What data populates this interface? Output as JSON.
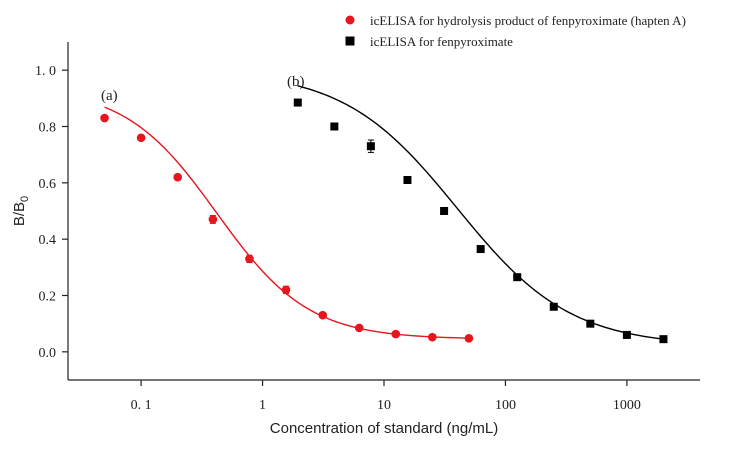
{
  "chart_data": {
    "type": "scatter",
    "title": "",
    "xlabel": "Concentration of standard (ng/mL)",
    "ylabel_main": "B/B",
    "ylabel_sub": "0",
    "xscale": "log",
    "xlim": [
      0.025,
      4000
    ],
    "ylim": [
      -0.1,
      1.1
    ],
    "xticks": [
      0.1,
      1,
      10,
      100,
      1000
    ],
    "xtick_labels": [
      "0. 1",
      "1",
      "10",
      "100",
      "1000"
    ],
    "yticks": [
      0.0,
      0.2,
      0.4,
      0.6,
      0.8,
      1.0
    ],
    "ytick_labels": [
      "0.0",
      "0.2",
      "0.4",
      "0.6",
      "0.8",
      "1. 0"
    ],
    "grid": false,
    "legend_position": "top-right",
    "series": [
      {
        "name": "icELISA for hydrolysis product of  fenpyroximate (hapten A)",
        "label": "(a)",
        "color": "#e8141e",
        "marker": "circle",
        "x": [
          0.05,
          0.1,
          0.2,
          0.39,
          0.78,
          1.56,
          3.13,
          6.25,
          12.5,
          25,
          50
        ],
        "y": [
          0.83,
          0.76,
          0.62,
          0.47,
          0.33,
          0.22,
          0.13,
          0.085,
          0.063,
          0.052,
          0.048
        ],
        "err": [
          0.006,
          0.006,
          0.008,
          0.014,
          0.013,
          0.013,
          0.006,
          0.005,
          0.004,
          0.004,
          0.004
        ],
        "fit": {
          "top": 0.94,
          "bottom": 0.045,
          "ic50": 0.42,
          "hill": 1.15,
          "xmin": 0.05,
          "xmax": 50
        }
      },
      {
        "name": "icELISA for fenpyroximate",
        "label": "(b)",
        "color": "#000000",
        "marker": "square",
        "x": [
          1.95,
          3.9,
          7.8,
          15.6,
          31.25,
          62.5,
          125,
          250,
          500,
          1000,
          2000
        ],
        "y": [
          0.885,
          0.8,
          0.73,
          0.61,
          0.5,
          0.365,
          0.265,
          0.16,
          0.1,
          0.06,
          0.045
        ],
        "err": [
          0.006,
          0.008,
          0.022,
          0.012,
          0.008,
          0.01,
          0.007,
          0.005,
          0.004,
          0.004,
          0.004
        ],
        "fit": {
          "top": 1.0,
          "bottom": 0.02,
          "ic50": 40,
          "hill": 0.93,
          "xmin": 1.95,
          "xmax": 2000
        }
      }
    ]
  }
}
